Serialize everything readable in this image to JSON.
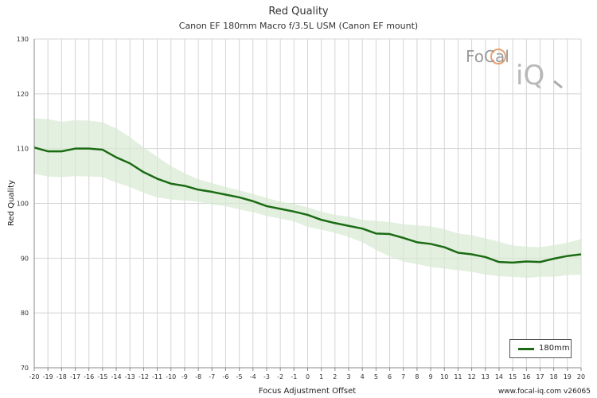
{
  "chart_data": {
    "type": "line",
    "title": "Red Quality",
    "subtitle": "Canon EF 180mm Macro f/3.5L USM (Canon EF mount)",
    "xlabel": "Focus Adjustment Offset",
    "ylabel": "Red Quality",
    "xlim": [
      -20,
      20
    ],
    "ylim": [
      70,
      130
    ],
    "yticks": [
      70,
      80,
      90,
      100,
      110,
      120,
      130
    ],
    "x": [
      -20,
      -19,
      -18,
      -17,
      -16,
      -15,
      -14,
      -13,
      -12,
      -11,
      -10,
      -9,
      -8,
      -7,
      -6,
      -5,
      -4,
      -3,
      -2,
      -1,
      0,
      1,
      2,
      3,
      4,
      5,
      6,
      7,
      8,
      9,
      10,
      11,
      12,
      13,
      14,
      15,
      16,
      17,
      18,
      19,
      20
    ],
    "series": [
      {
        "name": "180mm",
        "color": "#1b6b14",
        "values": [
          110.2,
          109.5,
          109.5,
          110.0,
          110.0,
          109.8,
          108.4,
          107.3,
          105.7,
          104.5,
          103.6,
          103.2,
          102.5,
          102.1,
          101.6,
          101.1,
          100.4,
          99.5,
          99.0,
          98.5,
          97.9,
          97.0,
          96.4,
          95.9,
          95.4,
          94.5,
          94.4,
          93.7,
          92.9,
          92.6,
          92.0,
          91.0,
          90.7,
          90.2,
          89.3,
          89.2,
          89.4,
          89.3,
          89.9,
          90.4,
          90.7
        ],
        "upper": [
          115.5,
          115.4,
          114.9,
          115.2,
          115.1,
          114.8,
          113.7,
          112.1,
          110.2,
          108.5,
          106.8,
          105.5,
          104.4,
          103.7,
          103.0,
          102.4,
          101.7,
          101.0,
          100.3,
          99.9,
          99.3,
          98.5,
          97.9,
          97.6,
          97.0,
          96.8,
          96.6,
          96.2,
          96.0,
          95.8,
          95.3,
          94.5,
          94.2,
          93.6,
          93.0,
          92.3,
          92.1,
          92.0,
          92.4,
          92.8,
          93.5
        ],
        "lower": [
          105.4,
          104.9,
          104.8,
          105.0,
          104.9,
          104.8,
          103.8,
          103.0,
          101.9,
          101.1,
          100.7,
          100.5,
          100.3,
          99.8,
          99.5,
          98.9,
          98.4,
          97.7,
          97.2,
          96.7,
          95.7,
          95.2,
          94.6,
          93.9,
          92.9,
          91.5,
          90.3,
          89.4,
          88.9,
          88.4,
          88.1,
          87.8,
          87.5,
          87.0,
          86.7,
          86.6,
          86.4,
          86.6,
          86.6,
          86.9,
          87.0
        ]
      }
    ],
    "grid": true,
    "legend_position": "bottom-right"
  },
  "credit": "www.focal-iq.com  v26065",
  "logo": {
    "line1": "FoCal",
    "line2": "iQ"
  }
}
